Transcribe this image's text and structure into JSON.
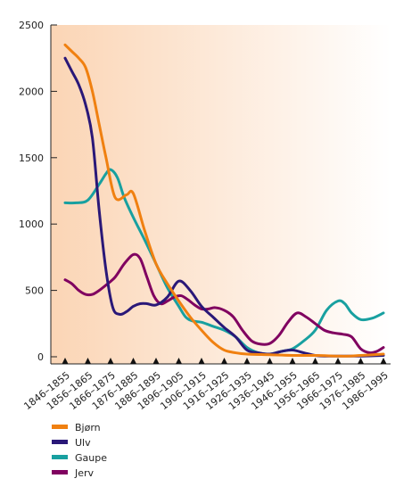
{
  "chart_data": {
    "type": "line",
    "categories": [
      "1846–1855",
      "1856–1865",
      "1866–1875",
      "1876–1885",
      "1886–1895",
      "1896–1905",
      "1906–1915",
      "1916–1925",
      "1926–1935",
      "1936–1945",
      "1946–1955",
      "1956–1965",
      "1966–1975",
      "1976–1985",
      "1986–1995"
    ],
    "ylim": [
      0,
      2500
    ],
    "yticks": [
      0,
      500,
      1000,
      1500,
      2000,
      2500
    ],
    "grid": false,
    "legend_position": "bottom-left",
    "background": {
      "from": "#fbd5b5",
      "to": "#ffffff",
      "direction": "left-to-right"
    },
    "series": [
      {
        "name": "Bjørn",
        "color": "#f08010",
        "x": [
          0,
          0.3,
          0.6,
          0.9,
          1.2,
          1.5,
          1.8,
          2.2,
          2.7,
          3.0,
          3.5,
          4.0,
          4.5,
          5.0,
          5.5,
          6.0,
          6.5,
          7.0,
          7.5,
          8.0,
          9.0,
          10.0,
          11.0,
          12.0,
          12.5,
          13.0,
          14.0
        ],
        "values": [
          2350,
          2300,
          2250,
          2180,
          2000,
          1750,
          1500,
          1200,
          1220,
          1230,
          950,
          700,
          550,
          420,
          300,
          200,
          110,
          50,
          30,
          20,
          15,
          10,
          10,
          5,
          5,
          10,
          20
        ]
      },
      {
        "name": "Ulv",
        "color": "#2a1878",
        "x": [
          0,
          0.3,
          0.6,
          0.9,
          1.2,
          1.5,
          1.8,
          2.1,
          2.4,
          2.7,
          3.0,
          3.3,
          3.6,
          4.0,
          4.5,
          5.0,
          5.5,
          6.0,
          6.5,
          7.0,
          7.5,
          8.0,
          8.5,
          9.0,
          9.5,
          10.0,
          10.5,
          11.0,
          11.5,
          12.0,
          13.0,
          14.0
        ],
        "values": [
          2250,
          2150,
          2050,
          1900,
          1650,
          1100,
          650,
          370,
          320,
          340,
          380,
          400,
          400,
          390,
          450,
          570,
          500,
          380,
          300,
          220,
          150,
          50,
          30,
          20,
          40,
          50,
          30,
          10,
          5,
          5,
          5,
          10
        ]
      },
      {
        "name": "Gaupe",
        "color": "#18a0a0",
        "x": [
          0,
          0.5,
          1.0,
          1.5,
          1.8,
          2.0,
          2.3,
          2.6,
          3.0,
          3.5,
          4.0,
          4.5,
          5.0,
          5.3,
          5.6,
          6.0,
          6.5,
          7.0,
          7.5,
          8.0,
          8.5,
          9.0,
          9.5,
          10.0,
          10.5,
          11.0,
          11.5,
          12.0,
          12.3,
          12.6,
          13.0,
          13.5,
          14.0
        ],
        "values": [
          1160,
          1160,
          1180,
          1300,
          1380,
          1410,
          1350,
          1200,
          1050,
          880,
          700,
          520,
          380,
          300,
          270,
          260,
          230,
          200,
          150,
          70,
          30,
          20,
          40,
          60,
          120,
          200,
          350,
          420,
          400,
          330,
          280,
          290,
          330
        ]
      },
      {
        "name": "Jerv",
        "color": "#800060",
        "x": [
          0,
          0.3,
          0.6,
          0.9,
          1.2,
          1.5,
          1.8,
          2.2,
          2.6,
          3.0,
          3.3,
          3.6,
          3.9,
          4.2,
          4.5,
          4.8,
          5.1,
          5.4,
          5.7,
          6.0,
          6.3,
          6.6,
          7.0,
          7.4,
          7.8,
          8.2,
          8.6,
          9.0,
          9.4,
          9.8,
          10.2,
          10.6,
          11.0,
          11.4,
          11.8,
          12.2,
          12.6,
          13.0,
          13.4,
          13.7,
          14.0
        ],
        "values": [
          580,
          550,
          500,
          470,
          470,
          500,
          540,
          600,
          700,
          770,
          740,
          600,
          460,
          400,
          420,
          450,
          460,
          430,
          390,
          360,
          360,
          370,
          350,
          300,
          200,
          120,
          95,
          100,
          160,
          260,
          330,
          300,
          250,
          200,
          180,
          170,
          150,
          60,
          30,
          40,
          70
        ]
      }
    ]
  }
}
